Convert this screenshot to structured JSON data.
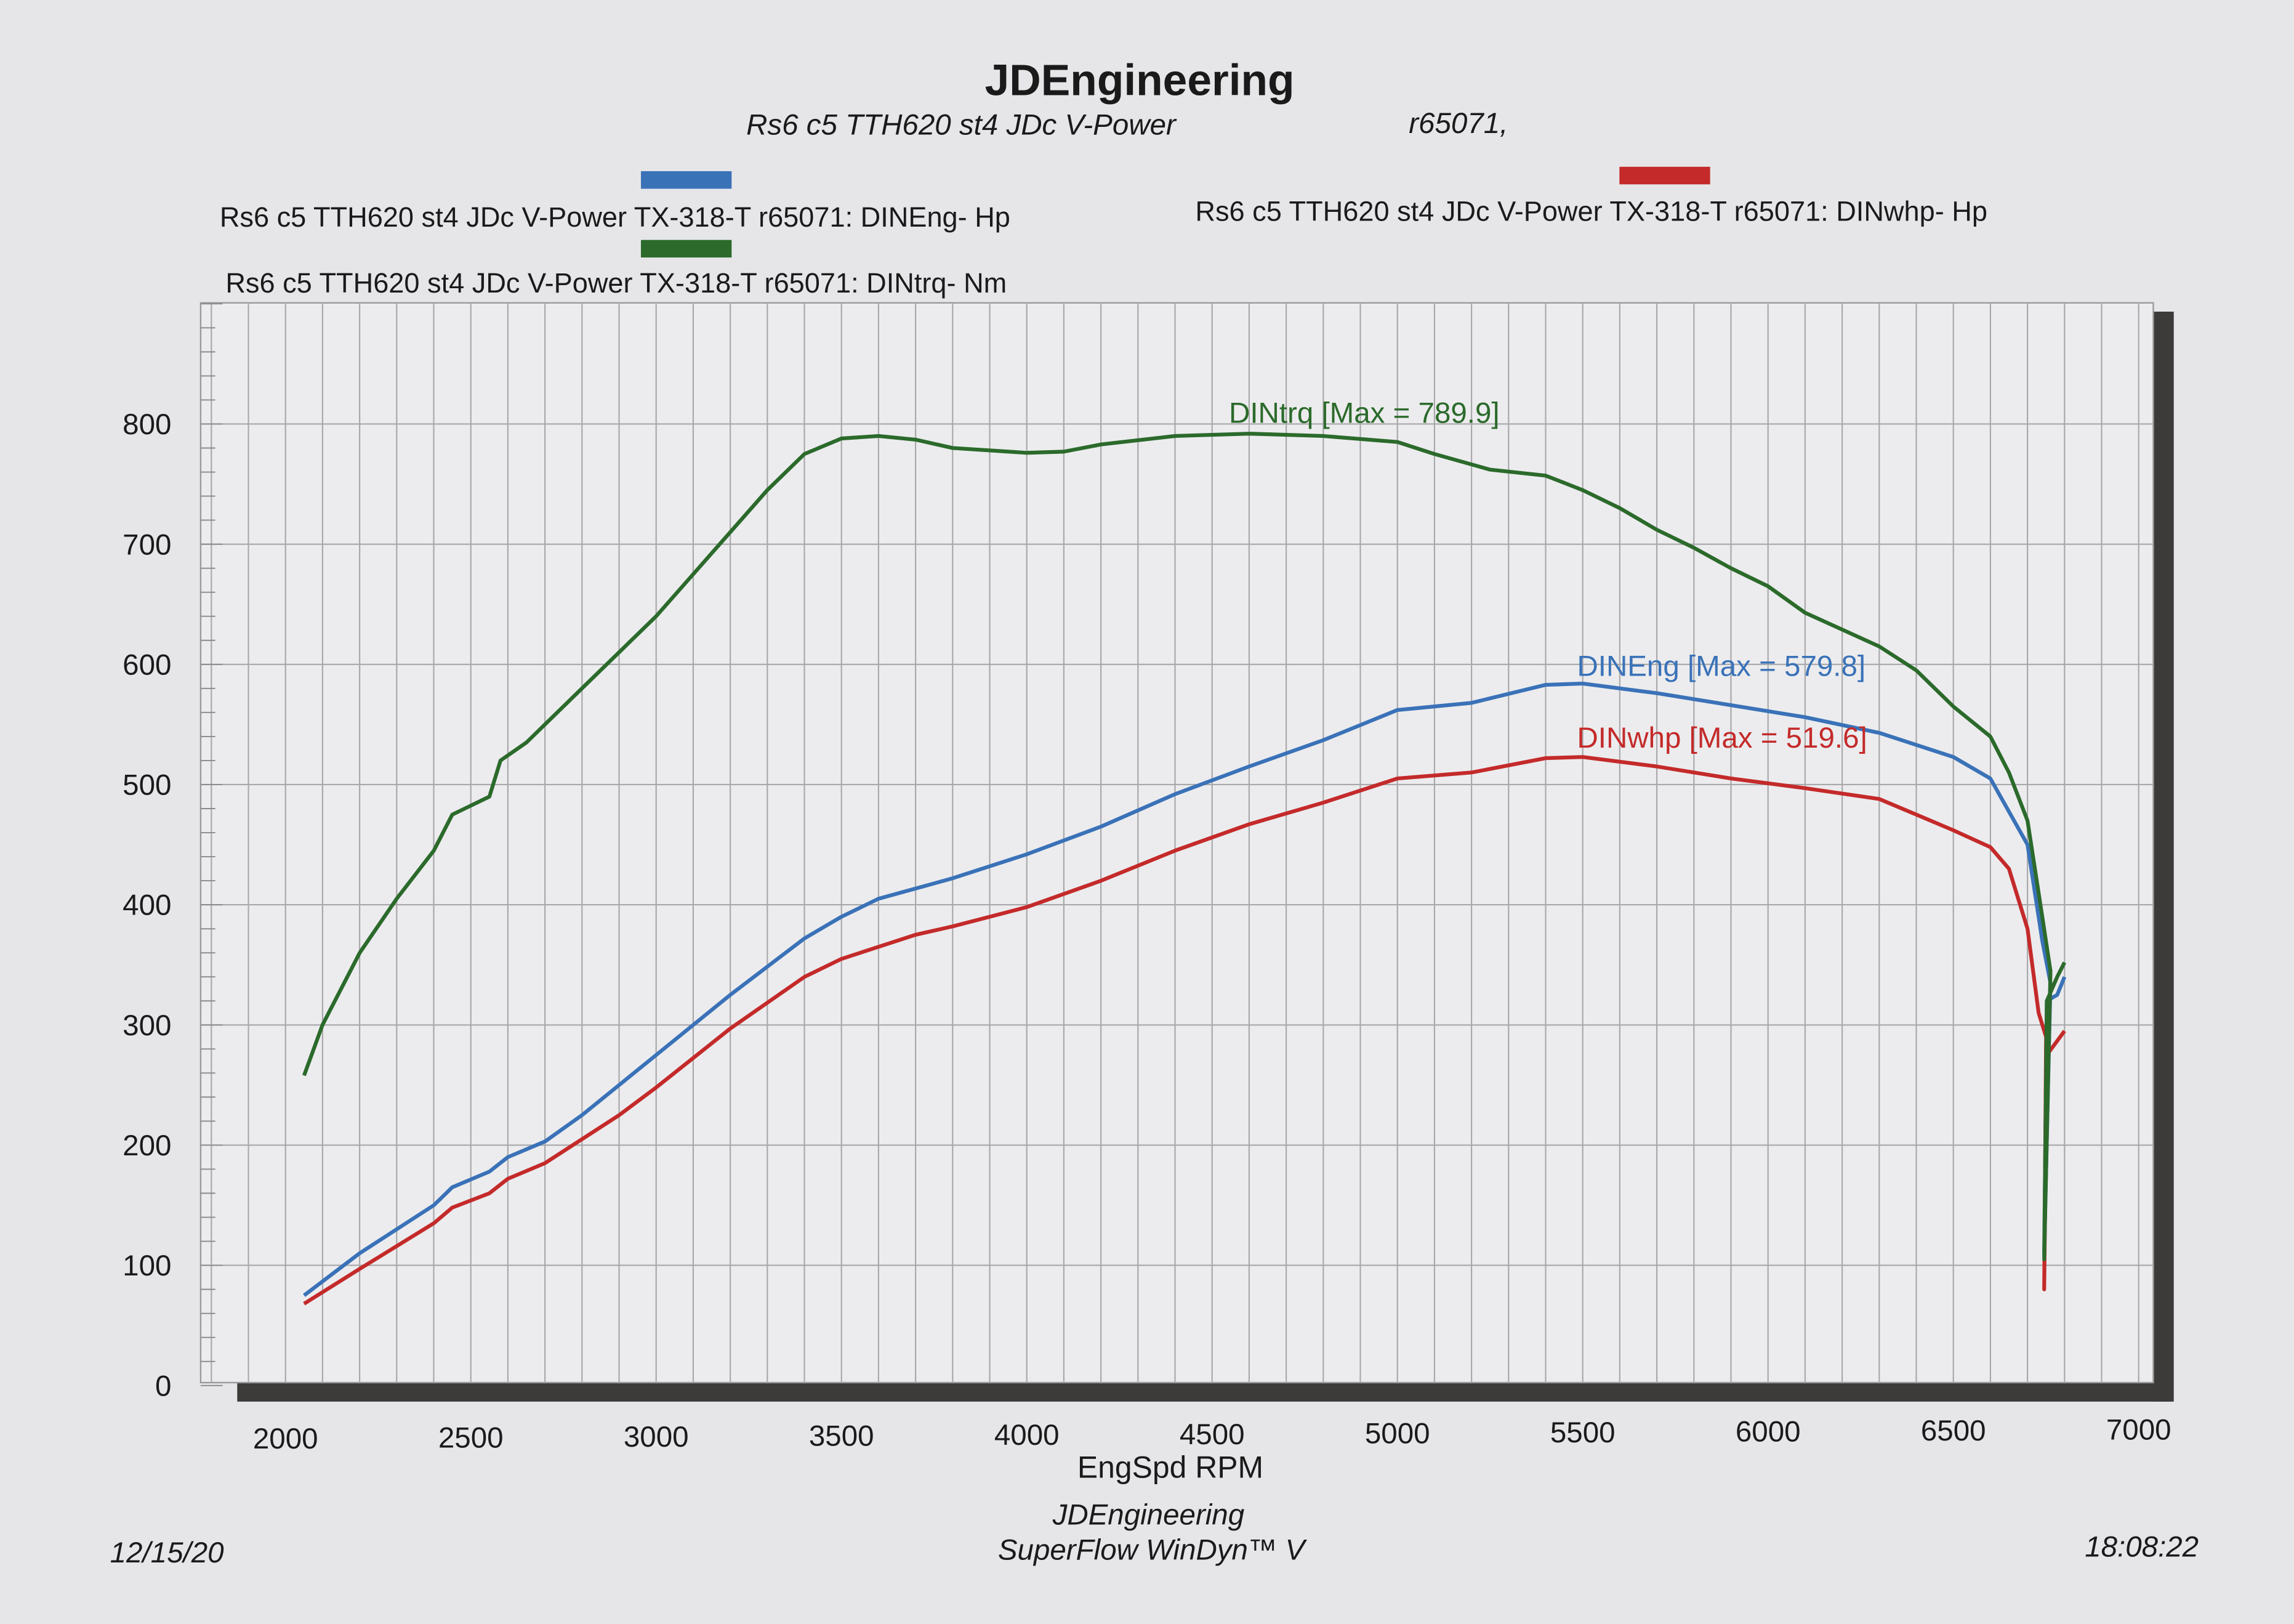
{
  "header": {
    "title": "JDEngineering",
    "subtitle_left": "Rs6 c5 TTH620 st4 JDc V-Power",
    "subtitle_right": "r65071,"
  },
  "footer": {
    "date": "12/15/20",
    "company": "JDEngineering",
    "software": "SuperFlow WinDyn™ V",
    "time": "18:08:22"
  },
  "chart_data": {
    "type": "line",
    "title": "JDEngineering",
    "xlabel": "EngSpd  RPM",
    "ylabel": "",
    "xlim": [
      1770,
      7040
    ],
    "ylim": [
      0,
      900
    ],
    "grid": true,
    "legend_placement": "top",
    "x_ticks": [
      "2000",
      "2500",
      "3000",
      "3500",
      "4000",
      "4500",
      "5000",
      "5500",
      "6000",
      "6500",
      "7000"
    ],
    "y_ticks": [
      "0",
      "100",
      "200",
      "300",
      "400",
      "500",
      "600",
      "700",
      "800"
    ],
    "series": [
      {
        "name": "Rs6 c5 TTH620 st4 JDc V-Power TX-318-T r65071: DINEng- Hp",
        "annotation": "DINEng [Max = 579.8]",
        "color": "#3a72b8",
        "points": [
          [
            2050,
            75
          ],
          [
            2200,
            110
          ],
          [
            2300,
            130
          ],
          [
            2400,
            150
          ],
          [
            2450,
            165
          ],
          [
            2550,
            178
          ],
          [
            2600,
            190
          ],
          [
            2700,
            203
          ],
          [
            2800,
            225
          ],
          [
            3000,
            275
          ],
          [
            3200,
            325
          ],
          [
            3400,
            372
          ],
          [
            3500,
            390
          ],
          [
            3600,
            405
          ],
          [
            3800,
            422
          ],
          [
            4000,
            442
          ],
          [
            4200,
            465
          ],
          [
            4400,
            492
          ],
          [
            4600,
            515
          ],
          [
            4800,
            537
          ],
          [
            5000,
            562
          ],
          [
            5200,
            568
          ],
          [
            5400,
            583
          ],
          [
            5500,
            584
          ],
          [
            5700,
            576
          ],
          [
            5900,
            566
          ],
          [
            6100,
            556
          ],
          [
            6300,
            543
          ],
          [
            6500,
            523
          ],
          [
            6600,
            505
          ],
          [
            6700,
            450
          ],
          [
            6740,
            370
          ],
          [
            6762,
            335
          ],
          [
            6745,
            110
          ],
          [
            6752,
            320
          ],
          [
            6780,
            325
          ],
          [
            6800,
            340
          ]
        ]
      },
      {
        "name": "Rs6 c5 TTH620 st4 JDc V-Power TX-318-T r65071: DINwhp-  Hp",
        "annotation": "DINwhp [Max = 519.6]",
        "color": "#c42a2a",
        "points": [
          [
            2050,
            68
          ],
          [
            2200,
            97
          ],
          [
            2400,
            135
          ],
          [
            2450,
            148
          ],
          [
            2550,
            160
          ],
          [
            2600,
            172
          ],
          [
            2700,
            185
          ],
          [
            2900,
            225
          ],
          [
            3000,
            248
          ],
          [
            3200,
            297
          ],
          [
            3400,
            340
          ],
          [
            3500,
            355
          ],
          [
            3700,
            375
          ],
          [
            3800,
            382
          ],
          [
            4000,
            398
          ],
          [
            4200,
            420
          ],
          [
            4400,
            445
          ],
          [
            4600,
            467
          ],
          [
            4800,
            485
          ],
          [
            5000,
            505
          ],
          [
            5200,
            510
          ],
          [
            5400,
            522
          ],
          [
            5500,
            523
          ],
          [
            5700,
            515
          ],
          [
            5900,
            505
          ],
          [
            6100,
            497
          ],
          [
            6300,
            488
          ],
          [
            6400,
            475
          ],
          [
            6500,
            462
          ],
          [
            6600,
            448
          ],
          [
            6650,
            430
          ],
          [
            6700,
            380
          ],
          [
            6730,
            310
          ],
          [
            6750,
            290
          ],
          [
            6745,
            80
          ],
          [
            6752,
            275
          ],
          [
            6800,
            295
          ]
        ]
      },
      {
        "name": "Rs6 c5 TTH620 st4 JDc V-Power TX-318-T r65071: DINtrq- Nm",
        "annotation": "DINtrq [Max = 789.9]",
        "color": "#2b6a2b",
        "points": [
          [
            2050,
            258
          ],
          [
            2100,
            300
          ],
          [
            2200,
            360
          ],
          [
            2300,
            405
          ],
          [
            2400,
            445
          ],
          [
            2450,
            475
          ],
          [
            2550,
            490
          ],
          [
            2580,
            520
          ],
          [
            2650,
            535
          ],
          [
            2800,
            580
          ],
          [
            3000,
            640
          ],
          [
            3200,
            710
          ],
          [
            3300,
            745
          ],
          [
            3400,
            775
          ],
          [
            3500,
            788
          ],
          [
            3600,
            790
          ],
          [
            3700,
            787
          ],
          [
            3800,
            780
          ],
          [
            4000,
            776
          ],
          [
            4100,
            777
          ],
          [
            4200,
            783
          ],
          [
            4400,
            790
          ],
          [
            4600,
            792
          ],
          [
            4800,
            790
          ],
          [
            5000,
            785
          ],
          [
            5100,
            775
          ],
          [
            5250,
            762
          ],
          [
            5400,
            757
          ],
          [
            5500,
            745
          ],
          [
            5600,
            730
          ],
          [
            5700,
            712
          ],
          [
            5800,
            697
          ],
          [
            5900,
            680
          ],
          [
            6000,
            665
          ],
          [
            6100,
            643
          ],
          [
            6300,
            615
          ],
          [
            6400,
            595
          ],
          [
            6500,
            565
          ],
          [
            6600,
            540
          ],
          [
            6650,
            510
          ],
          [
            6700,
            470
          ],
          [
            6740,
            390
          ],
          [
            6762,
            345
          ],
          [
            6745,
            105
          ],
          [
            6752,
            320
          ],
          [
            6780,
            340
          ],
          [
            6800,
            352
          ]
        ]
      }
    ]
  }
}
